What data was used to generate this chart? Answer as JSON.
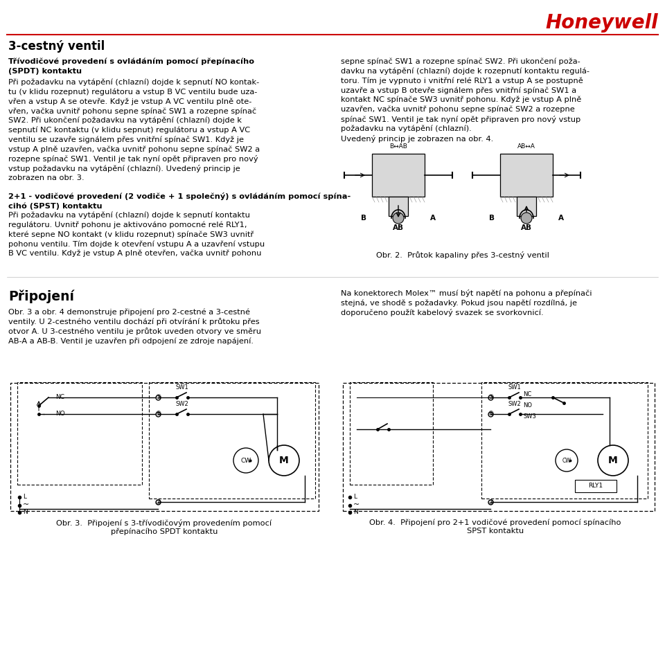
{
  "bg_color": "#FFFFFF",
  "text_color": "#000000",
  "red_color": "#CC0000",
  "honeywell": "Honeywell",
  "title": "3-cestný ventil",
  "bold1": "Třívodičové provedení s ovládáním pomocí přepínacího\n(SPDT) kontaktu",
  "para1": "Při požadavku na vytápění (chlazní) dojde k sepnutí NO kontak-\ntu (v klidu rozepnut) regulátoru a vstup B VC ventilu bude uza-\nvřen a vstup A se otevře. Když je vstup A VC ventilu plně ote-\nvřen, vačka uvnitř pohonu sepne spínač SW1 a rozepne spínač\nSW2. Při ukončení požadavku na vytápění (chlazní) dojde k\nsepnutí NC kontaktu (v klidu sepnut) regulátoru a vstup A VC\nventilu se uzavře signálem přes vnitřní spínač SW1. Když je\nvstup A plně uzavřen, vačka uvnitř pohonu sepne spínač SW2 a\nrozepne spínač SW1. Ventil je tak nyní opět připraven pro nový\nvstup požadavku na vytápění (chlazní). Uvedený princip je\nzobrazen na obr. 3.",
  "bold2": "2+1 - vodičové provedení (2 vodiče + 1 společný) s ovládáním pomocí spína-\ncihó (SPST) kontaktu",
  "para2": "Při požadavku na vytápění (chlazní) dojde k sepnutí kontaktu\nregulátoru. Uvnitř pohonu je aktivováno pomocné relé RLY1,\nkteré sepne NO kontakt (v klidu rozepnut) spínače SW3 uvnitř\npohonu ventilu. Tím dojde k otevření vstupu A a uzavření vstupu\nB VC ventilu. Když je vstup A plně otevřen, vačka uvnitř pohonu",
  "right1": "sepne spínač SW1 a rozepne spínač SW2. Při ukončení poža-\ndavku na vytápění (chlazní) dojde k rozepnutí kontaktu regulá-\ntoru. Tím je vypnuto i vnitřní relé RLY1 a vstup A se postupně\nuzavře a vstup B otevře signálem přes vnitřní spínač SW1 a\nkontakt NC spínače SW3 uvnitř pohonu. Když je vstup A plně\nuzavřen, vačka uvnitř pohonu sepne spínač SW2 a rozepne\nspínač SW1. Ventil je tak nyní opět připraven pro nový vstup\npožadavku na vytápění (chlazní).\nUvedený princip je zobrazen na obr. 4.",
  "fig2_cap": "Obr. 2.  Průtok kapaliny přes 3-cestný ventil",
  "pripojeni": "Připojení",
  "prep_left": "Obr. 3 a obr. 4 demonstruje připojení pro 2-cestné a 3-cestné\nventily. U 2-cestného ventilu dochází při otvírání k průtoku přes\notvor A. U 3-cestného ventilu je průtok uveden otvory ve směru\nAB-A a AB-B. Ventil je uzavřen při odpojení ze zdroje napájení.",
  "prep_right": "Na konektorech Molex™ musí být napětí na pohonu a přepínači\nstejná, ve shodě s požadavky. Pokud jsou napětí rozdílná, je\ndoporučeno použít kabelový svazek se svorkovnicí.",
  "fig3_cap": "Obr. 3.  Připojení s 3-třívodičovým provedením pomocí\npřepínacího SPDT kontaktu",
  "fig4_cap": "Obr. 4.  Připojení pro 2+1 vodičové provedení pomocí spínacího\nSPST kontaktu",
  "fs": 8.2,
  "fs_bold": 8.2,
  "fs_title": 12.0,
  "fs_hw": 20.0,
  "fs_sec": 10.5
}
